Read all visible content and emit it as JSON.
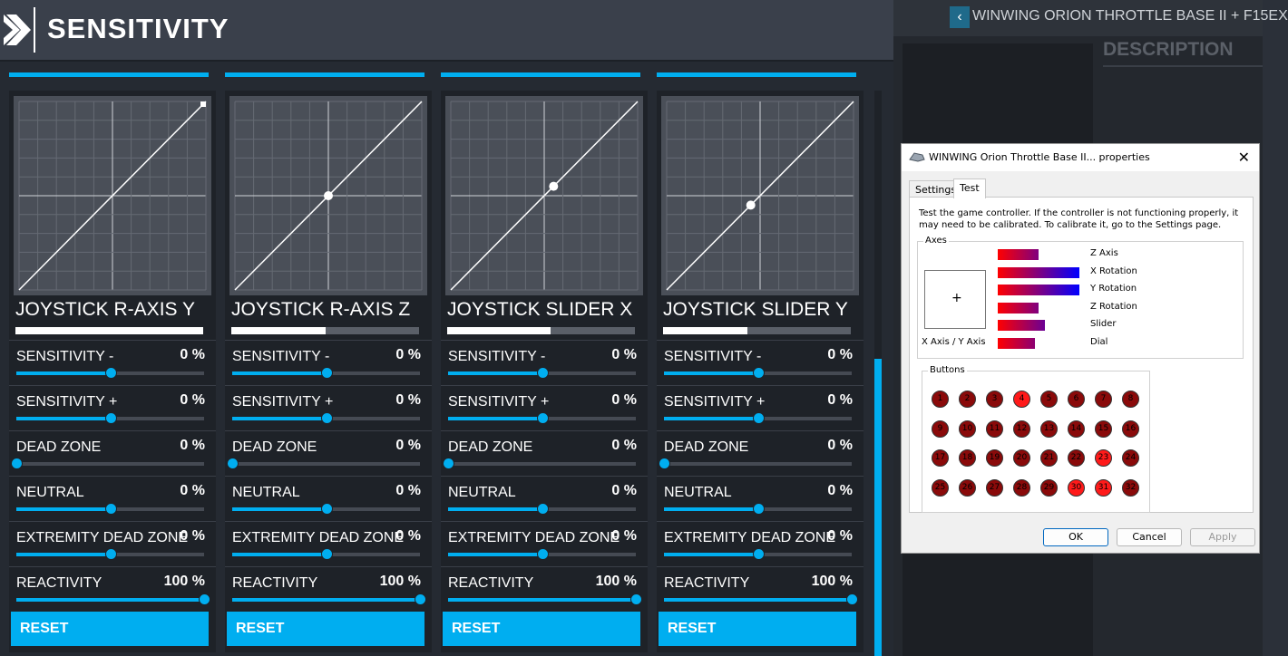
{
  "header": {
    "title": "SENSITIVITY"
  },
  "colors": {
    "accent": "#00aef0",
    "panel": "#1e2228",
    "graph": "#4a4f58"
  },
  "columns": [
    {
      "axis_name": "JOYSTICK R-AXIS Y",
      "axis_level": 1.0,
      "marker": "end",
      "marker_pos": [
        1.0,
        1.0
      ],
      "rows": [
        {
          "label": "SENSITIVITY -",
          "value": "0 %",
          "level": 0.5
        },
        {
          "label": "SENSITIVITY +",
          "value": "0 %",
          "level": 0.5
        },
        {
          "label": "DEAD ZONE",
          "value": "0 %",
          "level": 0.0
        },
        {
          "label": "NEUTRAL",
          "value": "0 %",
          "level": 0.5
        },
        {
          "label": "EXTREMITY DEAD ZONE",
          "value": "0 %",
          "level": 0.5
        },
        {
          "label": "REACTIVITY",
          "value": "100 %",
          "level": 1.0
        }
      ],
      "reset": "RESET"
    },
    {
      "axis_name": "JOYSTICK R-AXIS Z",
      "axis_level": 0.5,
      "marker": "dot",
      "marker_pos": [
        0.5,
        0.5
      ],
      "rows": [
        {
          "label": "SENSITIVITY -",
          "value": "0 %",
          "level": 0.5
        },
        {
          "label": "SENSITIVITY +",
          "value": "0 %",
          "level": 0.5
        },
        {
          "label": "DEAD ZONE",
          "value": "0 %",
          "level": 0.0
        },
        {
          "label": "NEUTRAL",
          "value": "0 %",
          "level": 0.5
        },
        {
          "label": "EXTREMITY DEAD ZONE",
          "value": "0 %",
          "level": 0.5
        },
        {
          "label": "REACTIVITY",
          "value": "100 %",
          "level": 1.0
        }
      ],
      "reset": "RESET"
    },
    {
      "axis_name": "JOYSTICK SLIDER X",
      "axis_level": 0.55,
      "marker": "dot",
      "marker_pos": [
        0.55,
        0.55
      ],
      "rows": [
        {
          "label": "SENSITIVITY -",
          "value": "0 %",
          "level": 0.5
        },
        {
          "label": "SENSITIVITY +",
          "value": "0 %",
          "level": 0.5
        },
        {
          "label": "DEAD ZONE",
          "value": "0 %",
          "level": 0.0
        },
        {
          "label": "NEUTRAL",
          "value": "0 %",
          "level": 0.5
        },
        {
          "label": "EXTREMITY DEAD ZONE",
          "value": "0 %",
          "level": 0.5
        },
        {
          "label": "REACTIVITY",
          "value": "100 %",
          "level": 1.0
        }
      ],
      "reset": "RESET"
    },
    {
      "axis_name": "JOYSTICK SLIDER Y",
      "axis_level": 0.45,
      "marker": "dot",
      "marker_pos": [
        0.45,
        0.45
      ],
      "rows": [
        {
          "label": "SENSITIVITY -",
          "value": "0 %",
          "level": 0.5
        },
        {
          "label": "SENSITIVITY +",
          "value": "0 %",
          "level": 0.5
        },
        {
          "label": "DEAD ZONE",
          "value": "0 %",
          "level": 0.0
        },
        {
          "label": "NEUTRAL",
          "value": "0 %",
          "level": 0.5
        },
        {
          "label": "EXTREMITY DEAD ZONE",
          "value": "0 %",
          "level": 0.5
        },
        {
          "label": "REACTIVITY",
          "value": "100 %",
          "level": 1.0
        }
      ],
      "reset": "RESET"
    }
  ],
  "background": {
    "device_title": "WINWING ORION THROTTLE BASE II + F15EX",
    "description_heading": "DESCRIPTION",
    "back_icon": "chevron-left-icon"
  },
  "dialog": {
    "title": "WINWING Orion Throttle Base II... properties",
    "close_icon": "close-icon",
    "tabs": [
      "Settings",
      "Test"
    ],
    "active_tab": "Test",
    "intro": "Test the game controller.  If the controller is not functioning properly, it may need to be calibrated.  To calibrate it, go to the Settings page.",
    "axes_label": "Axes",
    "xy_label": "X Axis / Y Axis",
    "axes": [
      {
        "name": "Z Axis",
        "level": 0.5
      },
      {
        "name": "X Rotation",
        "level": 1.0
      },
      {
        "name": "Y Rotation",
        "level": 1.0
      },
      {
        "name": "Z Rotation",
        "level": 0.5
      },
      {
        "name": "Slider",
        "level": 0.58
      },
      {
        "name": "Dial",
        "level": 0.45
      }
    ],
    "buttons_label": "Buttons",
    "buttons": [
      "1",
      "2",
      "3",
      "4",
      "5",
      "6",
      "7",
      "8",
      "9",
      "10",
      "11",
      "12",
      "13",
      "14",
      "15",
      "16",
      "17",
      "18",
      "19",
      "20",
      "21",
      "22",
      "23",
      "24",
      "25",
      "26",
      "27",
      "28",
      "29",
      "30",
      "31",
      "32"
    ],
    "pressed_buttons": [
      "4",
      "23",
      "30",
      "31"
    ],
    "ok": "OK",
    "cancel": "Cancel",
    "apply": "Apply"
  }
}
